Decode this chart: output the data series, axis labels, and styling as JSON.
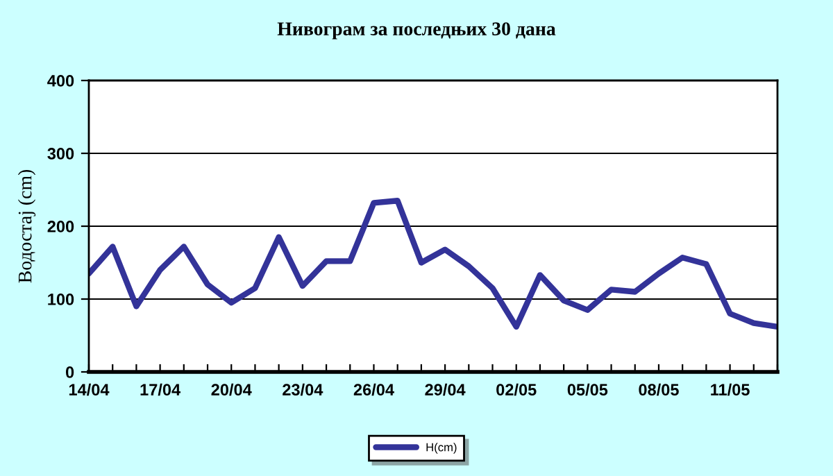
{
  "chart_data": {
    "type": "line",
    "title": "Нивограм за последњих 30 дана",
    "ylabel": "Водостај (cm)",
    "categories": [
      "14/04",
      null,
      null,
      "17/04",
      null,
      null,
      "20/04",
      null,
      null,
      "23/04",
      null,
      null,
      "26/04",
      null,
      null,
      "29/04",
      null,
      null,
      "02/05",
      null,
      null,
      "05/05",
      null,
      null,
      "08/05",
      null,
      null,
      "11/05",
      null,
      null
    ],
    "series": [
      {
        "name": "H(cm)",
        "color": "#333399",
        "values": [
          135,
          172,
          90,
          140,
          172,
          120,
          95,
          115,
          185,
          118,
          152,
          152,
          232,
          235,
          150,
          168,
          145,
          115,
          62,
          133,
          98,
          85,
          113,
          110,
          135,
          157,
          148,
          80,
          67,
          62
        ]
      }
    ],
    "ylim": [
      0,
      400
    ],
    "yticks": [
      0,
      100,
      200,
      300,
      400
    ],
    "grid": "y",
    "legend": "bottom",
    "marker": "none",
    "line_style": "solid"
  }
}
